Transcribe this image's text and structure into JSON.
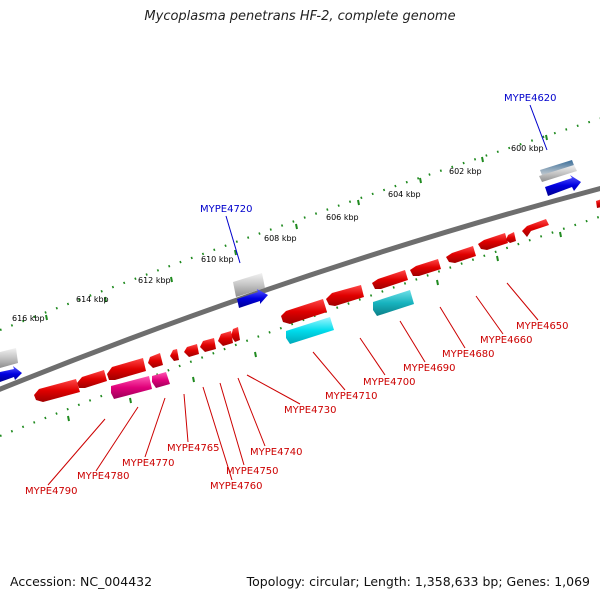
{
  "title": "Mycoplasma penetrans HF-2, complete genome",
  "footer": {
    "accession": "Accession: NC_004432",
    "topology": "Topology: circular; Length: 1,358,633 bp; Genes: 1,069"
  },
  "colors": {
    "backbone": "#6e6e6e",
    "tick": "#1f8a1f",
    "cds_red": "#e00000",
    "cds_magenta": "#e0007a",
    "cds_cyan": "#00c8d8",
    "cds_teal": "#17b3be",
    "blue": "#0000e0",
    "gray": "#bfbfbf",
    "label_red": "#cc0000",
    "label_blue": "#0000cc"
  },
  "scale_labels": [
    "600 kbp",
    "602 kbp",
    "604 kbp",
    "606 kbp",
    "608 kbp",
    "610 kbp",
    "612 kbp",
    "614 kbp",
    "616 kbp"
  ],
  "gene_labels_top": [
    "MYPE4620",
    "MYPE4720"
  ],
  "gene_labels_bottom": [
    "MYPE4650",
    "MYPE4660",
    "MYPE4680",
    "MYPE4690",
    "MYPE4700",
    "MYPE4710",
    "MYPE4730",
    "MYPE4740",
    "MYPE4750",
    "MYPE4760",
    "MYPE4765",
    "MYPE4770",
    "MYPE4780",
    "MYPE4790"
  ]
}
